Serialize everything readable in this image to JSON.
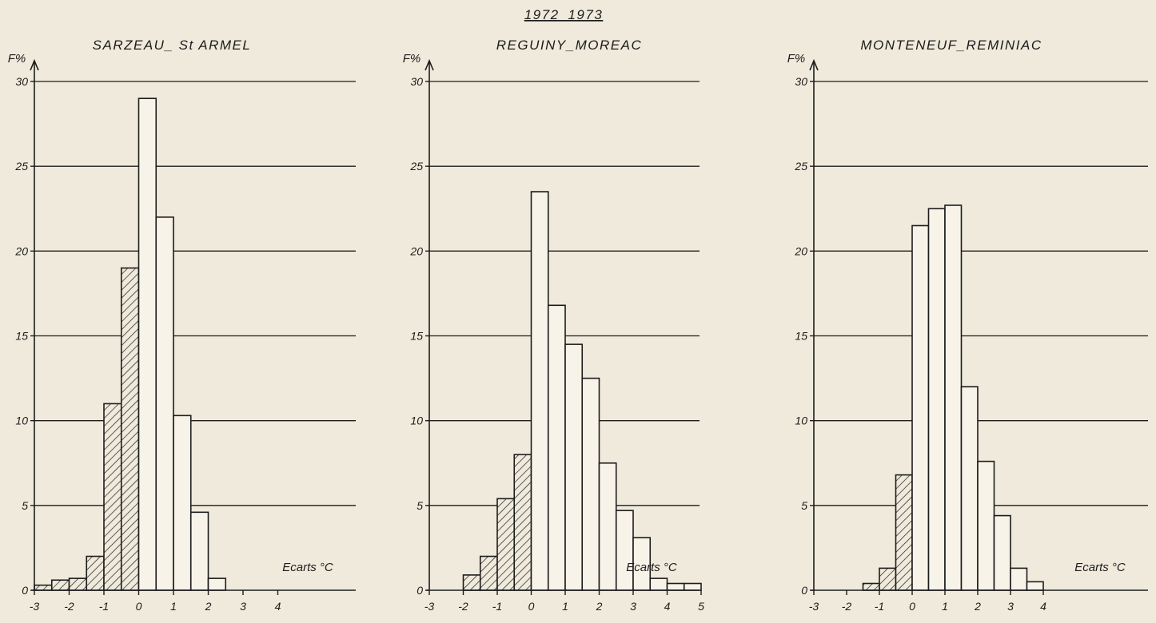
{
  "figure_title": "1972_1973",
  "colors": {
    "ink": "#1c1c1c",
    "paper": "#efeadb",
    "bar_fill": "#f7f3e8"
  },
  "chart_data": [
    {
      "type": "bar",
      "title": "SARZEAU_ St ARMEL",
      "ylabel": "F%",
      "xlabel": "Ecarts °C",
      "ylim": [
        0,
        30
      ],
      "yticks": [
        "0",
        "5",
        "10",
        "15",
        "20",
        "25",
        "30"
      ],
      "xticks": [
        "-3",
        "-2",
        "-1",
        "0",
        "1",
        "2",
        "3",
        "4"
      ],
      "bin_width": 0.5,
      "bars": [
        {
          "x": -3.0,
          "value": 0.3,
          "hatched": true
        },
        {
          "x": -2.5,
          "value": 0.6,
          "hatched": true
        },
        {
          "x": -2.0,
          "value": 0.7,
          "hatched": true
        },
        {
          "x": -1.5,
          "value": 2.0,
          "hatched": true
        },
        {
          "x": -1.0,
          "value": 11.0,
          "hatched": true
        },
        {
          "x": -0.5,
          "value": 19.0,
          "hatched": true
        },
        {
          "x": 0.0,
          "value": 29.0,
          "hatched": false
        },
        {
          "x": 0.5,
          "value": 22.0,
          "hatched": false
        },
        {
          "x": 1.0,
          "value": 10.3,
          "hatched": false
        },
        {
          "x": 1.5,
          "value": 4.6,
          "hatched": false
        },
        {
          "x": 2.0,
          "value": 0.7,
          "hatched": false
        }
      ]
    },
    {
      "type": "bar",
      "title": "REGUINY_MOREAC",
      "ylabel": "F%",
      "xlabel": "Ecarts °C",
      "ylim": [
        0,
        30
      ],
      "yticks": [
        "0",
        "5",
        "10",
        "15",
        "20",
        "25",
        "30"
      ],
      "xticks": [
        "-3",
        "-2",
        "-1",
        "0",
        "1",
        "2",
        "3",
        "4",
        "5"
      ],
      "bin_width": 0.5,
      "bars": [
        {
          "x": -2.0,
          "value": 0.9,
          "hatched": true
        },
        {
          "x": -1.5,
          "value": 2.0,
          "hatched": true
        },
        {
          "x": -1.0,
          "value": 5.4,
          "hatched": true
        },
        {
          "x": -0.5,
          "value": 8.0,
          "hatched": true
        },
        {
          "x": 0.0,
          "value": 23.5,
          "hatched": false
        },
        {
          "x": 0.5,
          "value": 16.8,
          "hatched": false
        },
        {
          "x": 1.0,
          "value": 14.5,
          "hatched": false
        },
        {
          "x": 1.5,
          "value": 12.5,
          "hatched": false
        },
        {
          "x": 2.0,
          "value": 7.5,
          "hatched": false
        },
        {
          "x": 2.5,
          "value": 4.7,
          "hatched": false
        },
        {
          "x": 3.0,
          "value": 3.1,
          "hatched": false
        },
        {
          "x": 3.5,
          "value": 0.7,
          "hatched": false
        },
        {
          "x": 4.0,
          "value": 0.4,
          "hatched": false
        },
        {
          "x": 4.5,
          "value": 0.4,
          "hatched": false
        }
      ]
    },
    {
      "type": "bar",
      "title": "MONTENEUF_REMINIAC",
      "ylabel": "F%",
      "xlabel": "Ecarts °C",
      "ylim": [
        0,
        30
      ],
      "yticks": [
        "0",
        "5",
        "10",
        "15",
        "20",
        "25",
        "30"
      ],
      "xticks": [
        "-3",
        "-2",
        "-1",
        "0",
        "1",
        "2",
        "3",
        "4"
      ],
      "bin_width": 0.5,
      "bars": [
        {
          "x": -1.5,
          "value": 0.4,
          "hatched": true
        },
        {
          "x": -1.0,
          "value": 1.3,
          "hatched": true
        },
        {
          "x": -0.5,
          "value": 6.8,
          "hatched": true
        },
        {
          "x": 0.0,
          "value": 21.5,
          "hatched": false
        },
        {
          "x": 0.5,
          "value": 22.5,
          "hatched": false
        },
        {
          "x": 1.0,
          "value": 22.7,
          "hatched": false
        },
        {
          "x": 1.5,
          "value": 12.0,
          "hatched": false
        },
        {
          "x": 2.0,
          "value": 7.6,
          "hatched": false
        },
        {
          "x": 2.5,
          "value": 4.4,
          "hatched": false
        },
        {
          "x": 3.0,
          "value": 1.3,
          "hatched": false
        },
        {
          "x": 3.5,
          "value": 0.5,
          "hatched": false
        }
      ]
    }
  ]
}
